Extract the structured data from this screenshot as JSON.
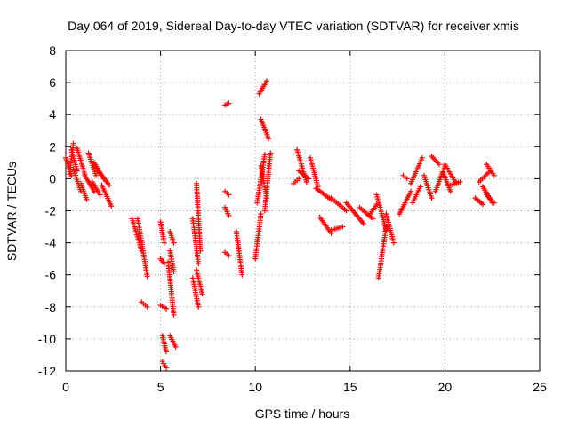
{
  "chart_data": {
    "type": "scatter",
    "title": "Day 064 of 2019, Sidereal Day-to-day VTEC variation (SDTVAR) for receiver xmis",
    "xlabel": "GPS time / hours",
    "ylabel": "SDTVAR / TECUs",
    "xlim": [
      0,
      25
    ],
    "ylim": [
      -12,
      8
    ],
    "xticks": [
      0,
      5,
      10,
      15,
      20,
      25
    ],
    "yticks": [
      -12,
      -10,
      -8,
      -6,
      -4,
      -2,
      0,
      2,
      4,
      6,
      8
    ],
    "grid": true,
    "marker": "plus",
    "color": "#ff0000",
    "segments": [
      {
        "x": [
          0.0,
          0.3
        ],
        "y": [
          1.3,
          0.2
        ]
      },
      {
        "x": [
          0.2,
          0.4
        ],
        "y": [
          0.3,
          2.2
        ]
      },
      {
        "x": [
          0.3,
          0.6
        ],
        "y": [
          1.8,
          0.5
        ]
      },
      {
        "x": [
          0.4,
          0.8
        ],
        "y": [
          0.6,
          -0.8
        ]
      },
      {
        "x": [
          0.6,
          1.0
        ],
        "y": [
          1.9,
          0.3
        ]
      },
      {
        "x": [
          0.8,
          1.1
        ],
        "y": [
          -0.3,
          -1.3
        ]
      },
      {
        "x": [
          1.0,
          1.5
        ],
        "y": [
          0.2,
          -0.8
        ]
      },
      {
        "x": [
          1.2,
          1.6
        ],
        "y": [
          1.6,
          0.2
        ]
      },
      {
        "x": [
          1.4,
          1.8
        ],
        "y": [
          -0.2,
          -1.0
        ]
      },
      {
        "x": [
          1.5,
          2.0
        ],
        "y": [
          1.0,
          0.0
        ]
      },
      {
        "x": [
          1.7,
          2.3
        ],
        "y": [
          0.5,
          -0.4
        ]
      },
      {
        "x": [
          1.9,
          2.4
        ],
        "y": [
          -0.4,
          -1.7
        ]
      },
      {
        "x": [
          3.5,
          4.0
        ],
        "y": [
          -2.5,
          -4.5
        ]
      },
      {
        "x": [
          3.8,
          4.3
        ],
        "y": [
          -2.5,
          -6.1
        ]
      },
      {
        "x": [
          4.0,
          4.3
        ],
        "y": [
          -7.7,
          -8.0
        ]
      },
      {
        "x": [
          5.0,
          5.2
        ],
        "y": [
          -2.7,
          -4.0
        ]
      },
      {
        "x": [
          5.0,
          5.2
        ],
        "y": [
          -5.0,
          -5.3
        ]
      },
      {
        "x": [
          5.0,
          5.3
        ],
        "y": [
          -7.9,
          -8.1
        ]
      },
      {
        "x": [
          5.1,
          5.3
        ],
        "y": [
          -9.8,
          -10.8
        ]
      },
      {
        "x": [
          5.1,
          5.3
        ],
        "y": [
          -11.4,
          -11.8
        ]
      },
      {
        "x": [
          5.4,
          5.7
        ],
        "y": [
          -5.2,
          -8.5
        ]
      },
      {
        "x": [
          5.5,
          5.7
        ],
        "y": [
          -3.3,
          -4.0
        ]
      },
      {
        "x": [
          5.5,
          5.8
        ],
        "y": [
          -9.8,
          -10.5
        ]
      },
      {
        "x": [
          5.5,
          5.7
        ],
        "y": [
          -4.5,
          -5.8
        ]
      },
      {
        "x": [
          6.7,
          7.0
        ],
        "y": [
          -2.5,
          -5.3
        ]
      },
      {
        "x": [
          6.7,
          7.0
        ],
        "y": [
          -6.2,
          -8.0
        ]
      },
      {
        "x": [
          6.9,
          7.1
        ],
        "y": [
          -0.3,
          -4.5
        ]
      },
      {
        "x": [
          6.9,
          7.2
        ],
        "y": [
          -5.7,
          -7.2
        ]
      },
      {
        "x": [
          8.4,
          8.6
        ],
        "y": [
          4.6,
          4.7
        ]
      },
      {
        "x": [
          8.4,
          8.6
        ],
        "y": [
          -0.8,
          -1.0
        ]
      },
      {
        "x": [
          8.4,
          8.6
        ],
        "y": [
          -1.8,
          -2.3
        ]
      },
      {
        "x": [
          8.4,
          8.6
        ],
        "y": [
          -4.6,
          -4.8
        ]
      },
      {
        "x": [
          9.0,
          9.3
        ],
        "y": [
          -3.3,
          -6.0
        ]
      },
      {
        "x": [
          10.0,
          10.3
        ],
        "y": [
          -5.0,
          -2.2
        ]
      },
      {
        "x": [
          10.1,
          10.5
        ],
        "y": [
          -1.5,
          1.5
        ]
      },
      {
        "x": [
          10.2,
          10.6
        ],
        "y": [
          5.3,
          6.1
        ]
      },
      {
        "x": [
          10.3,
          10.7
        ],
        "y": [
          3.7,
          2.5
        ]
      },
      {
        "x": [
          10.3,
          10.6
        ],
        "y": [
          0.8,
          -1.2
        ]
      },
      {
        "x": [
          10.5,
          10.8
        ],
        "y": [
          -2.0,
          1.6
        ]
      },
      {
        "x": [
          12.0,
          12.3
        ],
        "y": [
          -0.3,
          0.0
        ]
      },
      {
        "x": [
          12.2,
          12.7
        ],
        "y": [
          1.8,
          -0.2
        ]
      },
      {
        "x": [
          12.3,
          12.8
        ],
        "y": [
          0.5,
          0.0
        ]
      },
      {
        "x": [
          12.9,
          13.3
        ],
        "y": [
          1.3,
          -0.5
        ]
      },
      {
        "x": [
          13.2,
          14.0
        ],
        "y": [
          -0.6,
          -1.3
        ]
      },
      {
        "x": [
          13.4,
          14.0
        ],
        "y": [
          -2.4,
          -3.4
        ]
      },
      {
        "x": [
          14.0,
          14.8
        ],
        "y": [
          -1.2,
          -2.0
        ]
      },
      {
        "x": [
          14.0,
          14.6
        ],
        "y": [
          -3.2,
          -3.0
        ]
      },
      {
        "x": [
          14.8,
          15.7
        ],
        "y": [
          -1.5,
          -2.8
        ]
      },
      {
        "x": [
          15.5,
          16.2
        ],
        "y": [
          -1.8,
          -2.5
        ]
      },
      {
        "x": [
          16.0,
          16.4
        ],
        "y": [
          -2.3,
          -1.6
        ]
      },
      {
        "x": [
          16.4,
          16.9
        ],
        "y": [
          -1.0,
          -3.2
        ]
      },
      {
        "x": [
          16.5,
          16.9
        ],
        "y": [
          -6.2,
          -3.0
        ]
      },
      {
        "x": [
          16.9,
          17.3
        ],
        "y": [
          -2.2,
          -4.0
        ]
      },
      {
        "x": [
          17.6,
          18.2
        ],
        "y": [
          -2.2,
          -0.8
        ]
      },
      {
        "x": [
          17.8,
          18.0
        ],
        "y": [
          0.2,
          0.0
        ]
      },
      {
        "x": [
          18.2,
          18.8
        ],
        "y": [
          -0.3,
          1.3
        ]
      },
      {
        "x": [
          18.3,
          18.7
        ],
        "y": [
          -1.5,
          -0.5
        ]
      },
      {
        "x": [
          18.9,
          19.3
        ],
        "y": [
          0.2,
          -1.2
        ]
      },
      {
        "x": [
          19.3,
          19.7
        ],
        "y": [
          1.4,
          0.9
        ]
      },
      {
        "x": [
          19.5,
          20.0
        ],
        "y": [
          -0.8,
          0.8
        ]
      },
      {
        "x": [
          19.9,
          20.3
        ],
        "y": [
          0.4,
          -0.8
        ]
      },
      {
        "x": [
          20.0,
          20.6
        ],
        "y": [
          0.9,
          -0.3
        ]
      },
      {
        "x": [
          20.3,
          20.8
        ],
        "y": [
          -0.4,
          -0.2
        ]
      },
      {
        "x": [
          21.6,
          22.0
        ],
        "y": [
          -1.2,
          -1.6
        ]
      },
      {
        "x": [
          21.8,
          22.4
        ],
        "y": [
          -0.2,
          0.5
        ]
      },
      {
        "x": [
          22.0,
          22.5
        ],
        "y": [
          -0.5,
          -1.5
        ]
      },
      {
        "x": [
          22.2,
          22.6
        ],
        "y": [
          0.9,
          0.2
        ]
      },
      {
        "x": [
          22.2,
          22.6
        ],
        "y": [
          -1.0,
          -1.5
        ]
      }
    ]
  }
}
